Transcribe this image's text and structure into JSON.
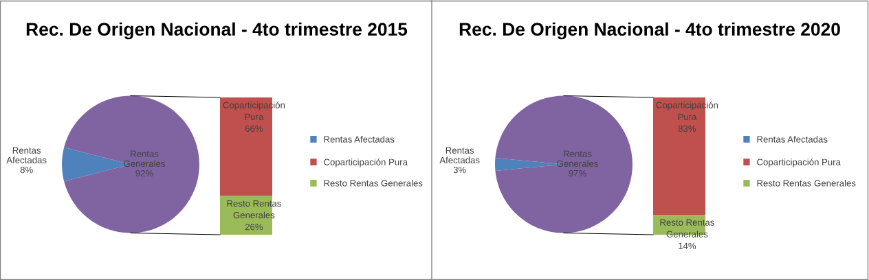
{
  "chart_data": [
    {
      "type": "pie",
      "title": "Rec. De Origen Nacional - 4to trimestre 2015",
      "categories": [
        "Rentas Afectadas",
        "Rentas Generales"
      ],
      "values": [
        8,
        92
      ],
      "colors": [
        "#4f81bd",
        "#8064a2"
      ],
      "value_labels": [
        "8%",
        "92%"
      ],
      "legend": "right"
    },
    {
      "type": "bar",
      "stacked": true,
      "legend": "right",
      "categories": [
        null
      ],
      "series": [
        {
          "name": "Resto Rentas Generales",
          "color": "#9bbb59",
          "values": [
            26
          ],
          "value_labels": [
            "26%"
          ]
        },
        {
          "name": "Coparticipación Pura",
          "color": "#c0504d",
          "values": [
            66
          ],
          "value_labels": [
            "66%"
          ]
        }
      ]
    },
    {
      "type": "pie",
      "title": "Rec. De Origen Nacional - 4to trimestre 2020",
      "categories": [
        "Rentas Afectadas",
        "Rentas Generales"
      ],
      "values": [
        3,
        97
      ],
      "colors": [
        "#4f81bd",
        "#8064a2"
      ],
      "value_labels": [
        "3%",
        "97%"
      ],
      "legend": "right"
    },
    {
      "type": "bar",
      "stacked": true,
      "legend": "right",
      "categories": [
        null
      ],
      "series": [
        {
          "name": "Resto Rentas Generales",
          "color": "#9bbb59",
          "values": [
            14
          ],
          "value_labels": [
            "14%"
          ]
        },
        {
          "name": "Coparticipación Pura",
          "color": "#c0504d",
          "values": [
            83
          ],
          "value_labels": [
            "83%"
          ]
        }
      ]
    }
  ]
}
